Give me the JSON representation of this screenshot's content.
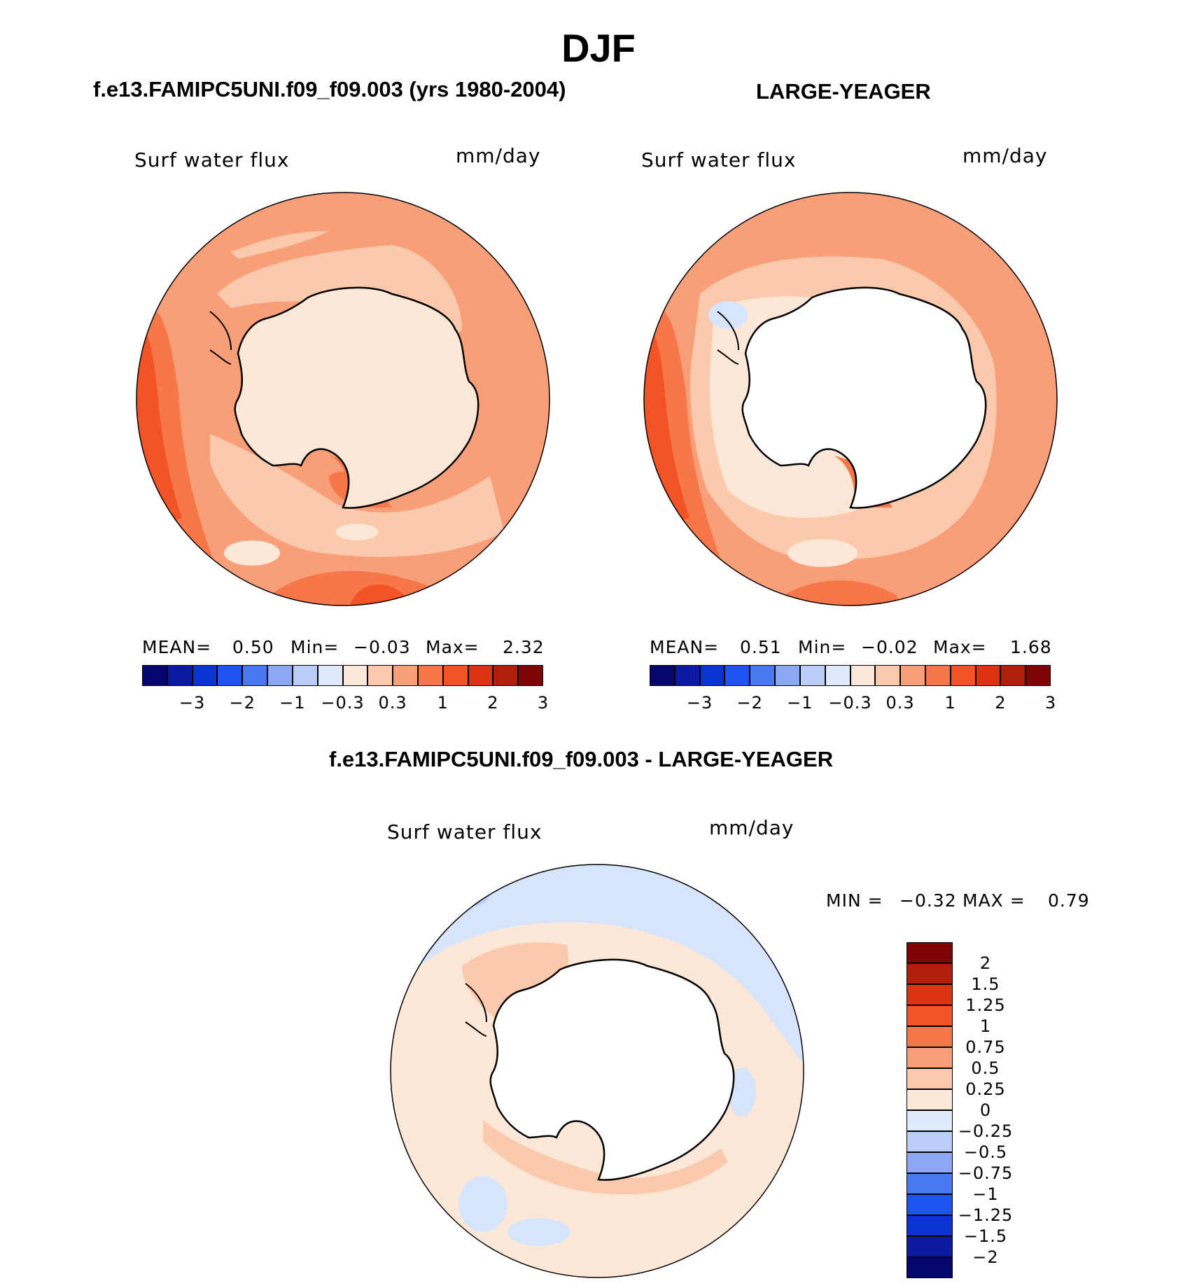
{
  "title": "DJF",
  "panel_left": {
    "header": "f.e13.FAMIPC5UNI.f09_f09.003 (yrs 1980-2004)",
    "variable": "Surf  water  flux",
    "units": "mm/day",
    "stats": {
      "mean_label": "MEAN=",
      "mean_value": "0.50",
      "min_label": "Min=",
      "min_value": "−0.03",
      "max_label": "Max=",
      "max_value": "2.32"
    }
  },
  "panel_right": {
    "header": "LARGE-YEAGER",
    "variable": "Surf  water  flux",
    "units": "mm/day",
    "stats": {
      "mean_label": "MEAN=",
      "mean_value": "0.51",
      "min_label": "Min=",
      "min_value": "−0.02",
      "max_label": "Max=",
      "max_value": "1.68"
    }
  },
  "panel_diff": {
    "header": "f.e13.FAMIPC5UNI.f09_f09.003 - LARGE-YEAGER",
    "variable": "Surf  water  flux",
    "units": "mm/day",
    "stats": {
      "min_label": "MIN =",
      "min_value": "−0.32",
      "max_label": "MAX =",
      "max_value": "0.79"
    }
  },
  "chart_data": [
    {
      "type": "heatmap",
      "projection": "south polar stereographic",
      "title": "f.e13.FAMIPC5UNI.f09_f09.003 (yrs 1980-2004)",
      "variable": "Surf water flux",
      "units": "mm/day",
      "mean": 0.5,
      "min": -0.03,
      "max": 2.32,
      "colorbar": {
        "orientation": "horizontal",
        "tick_labels": [
          "−3",
          "−2",
          "−1",
          "−0.3",
          "0.3",
          "1",
          "2",
          "3"
        ],
        "colors": [
          "#06066e",
          "#0b1ba1",
          "#0b33d2",
          "#1e55f0",
          "#4a78ee",
          "#8aa8f4",
          "#b8cdf8",
          "#dfeafc",
          "#fde8d8",
          "#fbc9ab",
          "#f89f7a",
          "#f6774a",
          "#f45325",
          "#dc3411",
          "#b01e0c",
          "#7d0505"
        ]
      }
    },
    {
      "type": "heatmap",
      "projection": "south polar stereographic",
      "title": "LARGE-YEAGER",
      "variable": "Surf water flux",
      "units": "mm/day",
      "mean": 0.51,
      "min": -0.02,
      "max": 1.68,
      "colorbar": {
        "orientation": "horizontal",
        "tick_labels": [
          "−3",
          "−2",
          "−1",
          "−0.3",
          "0.3",
          "1",
          "2",
          "3"
        ],
        "colors": [
          "#06066e",
          "#0b1ba1",
          "#0b33d2",
          "#1e55f0",
          "#4a78ee",
          "#8aa8f4",
          "#b8cdf8",
          "#dfeafc",
          "#fde8d8",
          "#fbc9ab",
          "#f89f7a",
          "#f6774a",
          "#f45325",
          "#dc3411",
          "#b01e0c",
          "#7d0505"
        ]
      }
    },
    {
      "type": "heatmap",
      "projection": "south polar stereographic",
      "title": "f.e13.FAMIPC5UNI.f09_f09.003 - LARGE-YEAGER",
      "variable": "Surf water flux",
      "units": "mm/day",
      "min": -0.32,
      "max": 0.79,
      "colorbar": {
        "orientation": "vertical",
        "tick_labels": [
          "2",
          "1.5",
          "1.25",
          "1",
          "0.75",
          "0.5",
          "0.25",
          "0",
          "−0.25",
          "−0.5",
          "−0.75",
          "−1",
          "−1.25",
          "−1.5",
          "−2"
        ],
        "colors": [
          "#7d0505",
          "#b01e0c",
          "#dc3411",
          "#f45325",
          "#f6774a",
          "#f89f7a",
          "#fbc9ab",
          "#fde8d8",
          "#dfeafc",
          "#b8cdf8",
          "#8aa8f4",
          "#4a78ee",
          "#1e55f0",
          "#0b33d2",
          "#0b1ba1",
          "#06066e"
        ]
      }
    }
  ]
}
